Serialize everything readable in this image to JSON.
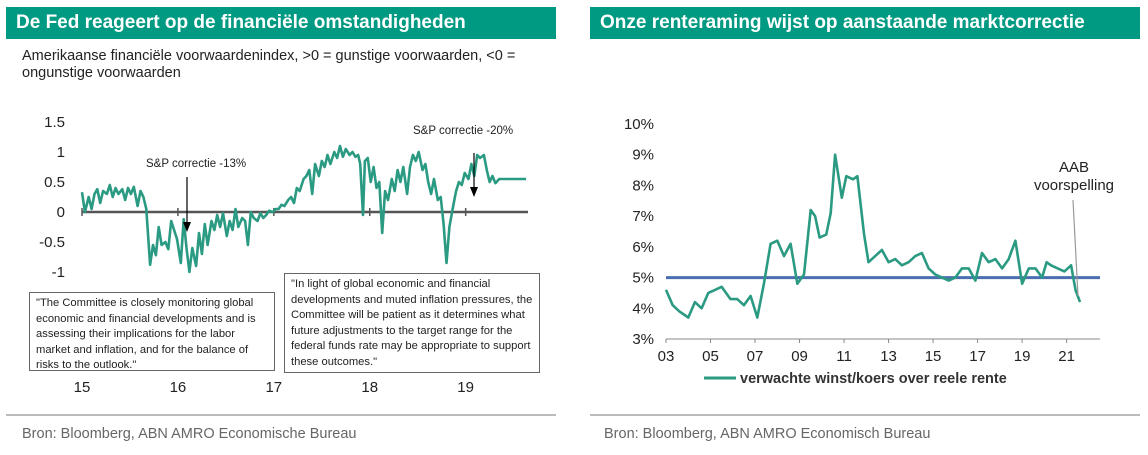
{
  "left_panel": {
    "title": "De Fed reageert op de financiële omstandigheden",
    "subtitle": "Amerikaanse financiële voorwaardenindex, >0 = gunstige voorwaarden, <0 = ongunstige voorwaarden",
    "source": "Bron: Bloomberg, ABN AMRO Economische Bureau",
    "quote_1": "\"The Committee is closely monitoring global economic and financial developments and is assessing their implications for the labor market and inflation, and for the balance of risks to the outlook.\"",
    "quote_2": "\"In light of global economic and financial developments and muted inflation pressures, the Committee will be patient as it determines what future adjustments to the target range for the federal funds rate may be appropriate to support these outcomes.\""
  },
  "right_panel": {
    "title": "Onze renteraming wijst op aanstaande marktcorrectie",
    "source": "Bron: Bloomberg, ABN AMRO Economisch Bureau"
  },
  "chart_data": [
    {
      "type": "line",
      "title": "De Fed reageert op de financiële omstandigheden",
      "ylim": [
        -1.25,
        1.5
      ],
      "xlim": [
        15.0,
        19.65
      ],
      "yticks": [
        1.5,
        1,
        0.5,
        0,
        -0.5,
        -1
      ],
      "ytick_labels": [
        "1.5",
        "1",
        "0.5",
        "0",
        "-0.5",
        "-1"
      ],
      "xticks": [
        15,
        16,
        17,
        18,
        19
      ],
      "xtick_labels": [
        "15",
        "16",
        "17",
        "18",
        "19"
      ],
      "series": [
        {
          "name": "Amerikaanse financiële voorwaardenindex",
          "color": "#2a9a82",
          "x": [
            15.0,
            15.03,
            15.07,
            15.1,
            15.13,
            15.16,
            15.19,
            15.22,
            15.26,
            15.29,
            15.32,
            15.35,
            15.38,
            15.42,
            15.45,
            15.48,
            15.51,
            15.54,
            15.58,
            15.61,
            15.64,
            15.67,
            15.71,
            15.74,
            15.77,
            15.8,
            15.83,
            15.87,
            15.9,
            15.93,
            15.96,
            15.99,
            16.03,
            16.06,
            16.09,
            16.12,
            16.15,
            16.19,
            16.22,
            16.25,
            16.28,
            16.31,
            16.35,
            16.38,
            16.41,
            16.44,
            16.47,
            16.51,
            16.54,
            16.57,
            16.6,
            16.63,
            16.67,
            16.7,
            16.73,
            16.76,
            16.79,
            16.83,
            16.86,
            16.89,
            16.92,
            16.95,
            16.99,
            17.02,
            17.05,
            17.08,
            17.11,
            17.15,
            17.18,
            17.21,
            17.24,
            17.27,
            17.31,
            17.34,
            17.37,
            17.4,
            17.43,
            17.47,
            17.5,
            17.53,
            17.56,
            17.59,
            17.63,
            17.66,
            17.69,
            17.72,
            17.75,
            17.79,
            17.82,
            17.85,
            17.88,
            17.9,
            17.93,
            17.95,
            17.98,
            18.01,
            18.04,
            18.07,
            18.1,
            18.13,
            18.16,
            18.19,
            18.23,
            18.26,
            18.29,
            18.32,
            18.35,
            18.39,
            18.42,
            18.45,
            18.48,
            18.51,
            18.55,
            18.58,
            18.61,
            18.64,
            18.67,
            18.71,
            18.74,
            18.77,
            18.8,
            18.83,
            18.87,
            18.9,
            18.93,
            18.96,
            18.99,
            19.03,
            19.06,
            19.09,
            19.12,
            19.15,
            19.19,
            19.22,
            19.25,
            19.28,
            19.31,
            19.35,
            19.38,
            19.41,
            19.44,
            19.47,
            19.51,
            19.54,
            19.57,
            19.6,
            19.63
          ],
          "y": [
            0.33,
            0.0,
            0.25,
            0.05,
            0.3,
            0.38,
            0.15,
            0.35,
            0.3,
            0.45,
            0.25,
            0.4,
            0.3,
            0.38,
            0.2,
            0.4,
            0.3,
            0.42,
            0.1,
            0.35,
            0.25,
            0.05,
            -0.88,
            -0.55,
            -0.72,
            -0.25,
            -0.55,
            -0.5,
            -0.62,
            -0.15,
            -0.3,
            -0.45,
            -0.85,
            -0.12,
            -0.6,
            -1.0,
            -0.6,
            -0.9,
            -0.35,
            -0.7,
            -0.2,
            -0.55,
            -0.15,
            -0.3,
            -0.05,
            -0.25,
            -0.02,
            -0.4,
            -0.15,
            -0.3,
            0.05,
            -0.25,
            -0.1,
            -0.15,
            -0.55,
            0.0,
            -0.1,
            -0.15,
            -0.02,
            -0.1,
            -0.05,
            0.02,
            0.0,
            0.05,
            0.05,
            0.12,
            0.1,
            0.2,
            0.25,
            0.15,
            0.4,
            0.35,
            0.55,
            0.6,
            0.7,
            0.3,
            0.8,
            0.6,
            0.85,
            0.75,
            0.95,
            0.8,
            1.0,
            0.9,
            1.1,
            0.92,
            1.05,
            0.95,
            1.0,
            0.92,
            0.95,
            0.8,
            -0.05,
            0.85,
            0.9,
            0.5,
            0.75,
            0.4,
            0.5,
            -0.35,
            0.35,
            0.2,
            0.55,
            0.35,
            0.7,
            0.5,
            0.75,
            0.3,
            0.75,
            0.95,
            0.85,
            1.0,
            0.7,
            0.8,
            0.5,
            0.3,
            0.55,
            0.2,
            0.25,
            -0.2,
            -0.85,
            -0.25,
            0.1,
            0.35,
            0.5,
            0.45,
            0.65,
            0.55,
            0.8,
            0.6,
            0.95,
            0.9,
            0.95,
            0.7,
            0.5,
            0.6,
            0.48,
            0.55,
            0.55,
            0.55,
            0.55,
            0.55,
            0.55,
            0.55,
            0.55,
            0.55,
            0.55
          ]
        }
      ],
      "annotations": [
        "S&P correctie -13%",
        "S&P correctie -20%"
      ]
    },
    {
      "type": "line",
      "title": "Onze renteraming wijst op aanstaande marktcorrectie",
      "ylim": [
        3,
        10
      ],
      "xlim": [
        2003,
        2022.5
      ],
      "yticks": [
        3,
        4,
        5,
        6,
        7,
        8,
        9,
        10
      ],
      "ytick_labels": [
        "3%",
        "4%",
        "5%",
        "6%",
        "7%",
        "8%",
        "9%",
        "10%"
      ],
      "xticks": [
        2003,
        2005,
        2007,
        2009,
        2011,
        2013,
        2015,
        2017,
        2019,
        2021
      ],
      "xtick_labels": [
        "03",
        "05",
        "07",
        "09",
        "11",
        "13",
        "15",
        "17",
        "19",
        "21"
      ],
      "reference_line": {
        "value": 5.0,
        "color": "#4a6fb0"
      },
      "series": [
        {
          "name": "verwachte winst/koers over reele rente",
          "color": "#2a9a82",
          "x": [
            2003.0,
            2003.3,
            2003.6,
            2004.0,
            2004.3,
            2004.6,
            2004.9,
            2005.2,
            2005.5,
            2005.9,
            2006.2,
            2006.5,
            2006.8,
            2007.1,
            2007.4,
            2007.7,
            2008.0,
            2008.3,
            2008.6,
            2008.9,
            2009.2,
            2009.5,
            2009.7,
            2009.9,
            2010.2,
            2010.4,
            2010.6,
            2010.9,
            2011.1,
            2011.4,
            2011.6,
            2011.9,
            2012.1,
            2012.4,
            2012.7,
            2013.0,
            2013.3,
            2013.6,
            2013.9,
            2014.2,
            2014.5,
            2014.8,
            2015.1,
            2015.4,
            2015.7,
            2016.0,
            2016.3,
            2016.6,
            2016.9,
            2017.2,
            2017.5,
            2017.8,
            2018.1,
            2018.4,
            2018.7,
            2019.0,
            2019.3,
            2019.6,
            2019.9,
            2020.1,
            2020.3,
            2020.6,
            2020.9,
            2021.2,
            2021.4,
            2021.6
          ],
          "y": [
            4.6,
            4.1,
            3.9,
            3.7,
            4.2,
            4.0,
            4.5,
            4.6,
            4.7,
            4.3,
            4.3,
            4.1,
            4.4,
            3.7,
            4.8,
            6.1,
            6.2,
            5.7,
            6.1,
            4.8,
            5.1,
            7.2,
            7.0,
            6.3,
            6.4,
            7.1,
            9.0,
            7.6,
            8.3,
            8.2,
            8.3,
            6.4,
            5.5,
            5.7,
            5.9,
            5.5,
            5.6,
            5.4,
            5.5,
            5.7,
            5.8,
            5.3,
            5.1,
            5.0,
            4.9,
            5.0,
            5.3,
            5.3,
            4.9,
            5.8,
            5.5,
            5.6,
            5.3,
            5.6,
            6.2,
            4.8,
            5.3,
            5.3,
            5.0,
            5.5,
            5.4,
            5.3,
            5.2,
            5.4,
            4.6,
            4.2
          ]
        }
      ],
      "annotation": "AAB\nvoorspelling",
      "legend": "verwachte winst/koers over reele rente"
    }
  ]
}
